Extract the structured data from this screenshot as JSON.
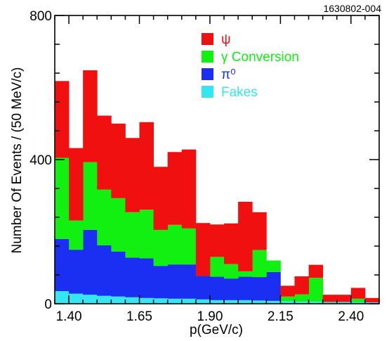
{
  "figure_id": "1630802-004",
  "chart_data": {
    "type": "bar",
    "stacked": true,
    "xlabel": "p(GeV/c)",
    "ylabel": "Number Of Events / (50 MeV/c)",
    "xlim": [
      1.35,
      2.5
    ],
    "ylim": [
      0,
      800
    ],
    "xticks": [
      1.4,
      1.65,
      1.9,
      2.15,
      2.4
    ],
    "xtick_labels": [
      "1.40",
      "1.65",
      "1.90",
      "2.15",
      "2.40"
    ],
    "yticks": [
      0,
      400,
      800
    ],
    "ytick_labels": [
      "0",
      "400",
      "800"
    ],
    "bin_width": 0.05,
    "bin_low_edges": [
      1.35,
      1.4,
      1.45,
      1.5,
      1.55,
      1.6,
      1.65,
      1.7,
      1.75,
      1.8,
      1.85,
      1.9,
      1.95,
      2.0,
      2.05,
      2.1,
      2.15,
      2.2,
      2.25,
      2.3,
      2.35,
      2.4,
      2.45
    ],
    "series": [
      {
        "name": "Fakes",
        "color": "#33e6f2",
        "values": [
          35,
          28,
          25,
          22,
          20,
          18,
          16,
          15,
          14,
          14,
          12,
          10,
          10,
          10,
          9,
          8,
          7,
          6,
          6,
          5,
          5,
          4,
          4
        ]
      },
      {
        "name": "π⁰",
        "color": "#1a2ff2",
        "values": [
          145,
          122,
          180,
          140,
          125,
          110,
          110,
          90,
          95,
          95,
          65,
          65,
          60,
          65,
          65,
          80,
          0,
          0,
          0,
          0,
          0,
          0,
          0
        ]
      },
      {
        "name": "γ Conversion",
        "color": "#11f011",
        "values": [
          225,
          81,
          188,
          155,
          148,
          126,
          135,
          100,
          110,
          100,
          0,
          55,
          40,
          15,
          75,
          32,
          13,
          20,
          66,
          0,
          0,
          10,
          0
        ]
      },
      {
        "name": "ψ",
        "color": "#f01010",
        "values": [
          213,
          201,
          255,
          205,
          207,
          206,
          243,
          175,
          202,
          219,
          147,
          90,
          113,
          193,
          105,
          0,
          30,
          50,
          36,
          20,
          20,
          30,
          12
        ]
      }
    ],
    "legend_order": [
      "ψ",
      "γ Conversion",
      "π⁰",
      "Fakes"
    ],
    "legend_label_colors": [
      "#f01010",
      "#11f011",
      "#1a2ff2",
      "#33e6f2"
    ],
    "legend_position": "top-right"
  }
}
